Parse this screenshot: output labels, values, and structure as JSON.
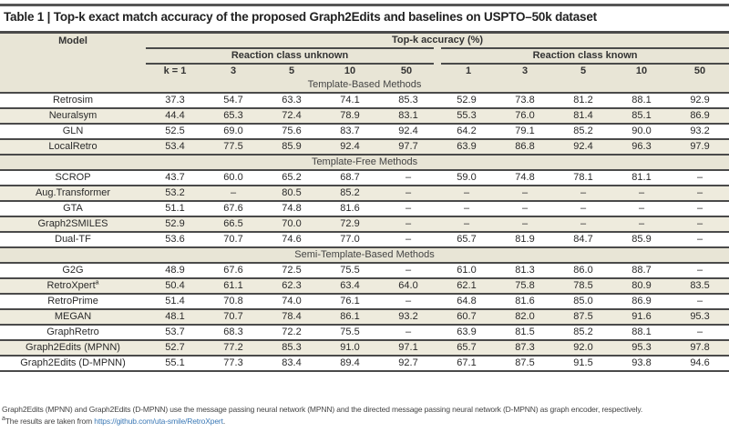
{
  "title": "Table 1 | Top-k exact match accuracy of the proposed Graph2Edits and baselines on USPTO–50k dataset",
  "header": {
    "model": "Model",
    "topk": "Top-k accuracy (%)",
    "unknown": "Reaction class unknown",
    "known": "Reaction class known",
    "k_unknown": [
      "k = 1",
      "3",
      "5",
      "10",
      "50"
    ],
    "k_known": [
      "1",
      "3",
      "5",
      "10",
      "50"
    ]
  },
  "groups": [
    {
      "name": "Template-Based Methods",
      "rows": [
        {
          "model": "Retrosim",
          "sup": "",
          "values": [
            "37.3",
            "54.7",
            "63.3",
            "74.1",
            "85.3",
            "52.9",
            "73.8",
            "81.2",
            "88.1",
            "92.9"
          ]
        },
        {
          "model": "Neuralsym",
          "sup": "",
          "values": [
            "44.4",
            "65.3",
            "72.4",
            "78.9",
            "83.1",
            "55.3",
            "76.0",
            "81.4",
            "85.1",
            "86.9"
          ]
        },
        {
          "model": "GLN",
          "sup": "",
          "values": [
            "52.5",
            "69.0",
            "75.6",
            "83.7",
            "92.4",
            "64.2",
            "79.1",
            "85.2",
            "90.0",
            "93.2"
          ]
        },
        {
          "model": "LocalRetro",
          "sup": "",
          "values": [
            "53.4",
            "77.5",
            "85.9",
            "92.4",
            "97.7",
            "63.9",
            "86.8",
            "92.4",
            "96.3",
            "97.9"
          ]
        }
      ]
    },
    {
      "name": "Template-Free Methods",
      "rows": [
        {
          "model": "SCROP",
          "sup": "",
          "values": [
            "43.7",
            "60.0",
            "65.2",
            "68.7",
            "–",
            "59.0",
            "74.8",
            "78.1",
            "81.1",
            "–"
          ]
        },
        {
          "model": "Aug.Transformer",
          "sup": "",
          "values": [
            "53.2",
            "–",
            "80.5",
            "85.2",
            "–",
            "–",
            "–",
            "–",
            "–",
            "–"
          ]
        },
        {
          "model": "GTA",
          "sup": "",
          "values": [
            "51.1",
            "67.6",
            "74.8",
            "81.6",
            "–",
            "–",
            "–",
            "–",
            "–",
            "–"
          ]
        },
        {
          "model": "Graph2SMILES",
          "sup": "",
          "values": [
            "52.9",
            "66.5",
            "70.0",
            "72.9",
            "–",
            "–",
            "–",
            "–",
            "–",
            "–"
          ]
        },
        {
          "model": "Dual-TF",
          "sup": "",
          "values": [
            "53.6",
            "70.7",
            "74.6",
            "77.0",
            "–",
            "65.7",
            "81.9",
            "84.7",
            "85.9",
            "–"
          ]
        }
      ]
    },
    {
      "name": "Semi-Template-Based Methods",
      "rows": [
        {
          "model": "G2G",
          "sup": "",
          "values": [
            "48.9",
            "67.6",
            "72.5",
            "75.5",
            "–",
            "61.0",
            "81.3",
            "86.0",
            "88.7",
            "–"
          ]
        },
        {
          "model": "RetroXpert",
          "sup": "a",
          "values": [
            "50.4",
            "61.1",
            "62.3",
            "63.4",
            "64.0",
            "62.1",
            "75.8",
            "78.5",
            "80.9",
            "83.5"
          ]
        },
        {
          "model": "RetroPrime",
          "sup": "",
          "values": [
            "51.4",
            "70.8",
            "74.0",
            "76.1",
            "–",
            "64.8",
            "81.6",
            "85.0",
            "86.9",
            "–"
          ]
        },
        {
          "model": "MEGAN",
          "sup": "",
          "values": [
            "48.1",
            "70.7",
            "78.4",
            "86.1",
            "93.2",
            "60.7",
            "82.0",
            "87.5",
            "91.6",
            "95.3"
          ]
        },
        {
          "model": "GraphRetro",
          "sup": "",
          "values": [
            "53.7",
            "68.3",
            "72.2",
            "75.5",
            "–",
            "63.9",
            "81.5",
            "85.2",
            "88.1",
            "–"
          ]
        },
        {
          "model": "Graph2Edits (MPNN)",
          "sup": "",
          "values": [
            "52.7",
            "77.2",
            "85.3",
            "91.0",
            "97.1",
            "65.7",
            "87.3",
            "92.0",
            "95.3",
            "97.8"
          ]
        },
        {
          "model": "Graph2Edits (D-MPNN)",
          "sup": "",
          "values": [
            "55.1",
            "77.3",
            "83.4",
            "89.4",
            "92.7",
            "67.1",
            "87.5",
            "91.5",
            "93.8",
            "94.6"
          ]
        }
      ]
    }
  ],
  "footnotes": {
    "note1": "Graph2Edits (MPNN) and Graph2Edits (D-MPNN) use the message passing neural network (MPNN) and the directed message passing neural network (D-MPNN) as graph encoder, respectively.",
    "note2_mark": "a",
    "note2_prefix": "The results are taken from ",
    "note2_link": "https://github.com/uta-smile/RetroXpert",
    "note2_suffix": "."
  },
  "colors": {
    "header_bg": "#e8e5d6",
    "rule": "#4a4a4a",
    "link": "#3a78b5"
  }
}
